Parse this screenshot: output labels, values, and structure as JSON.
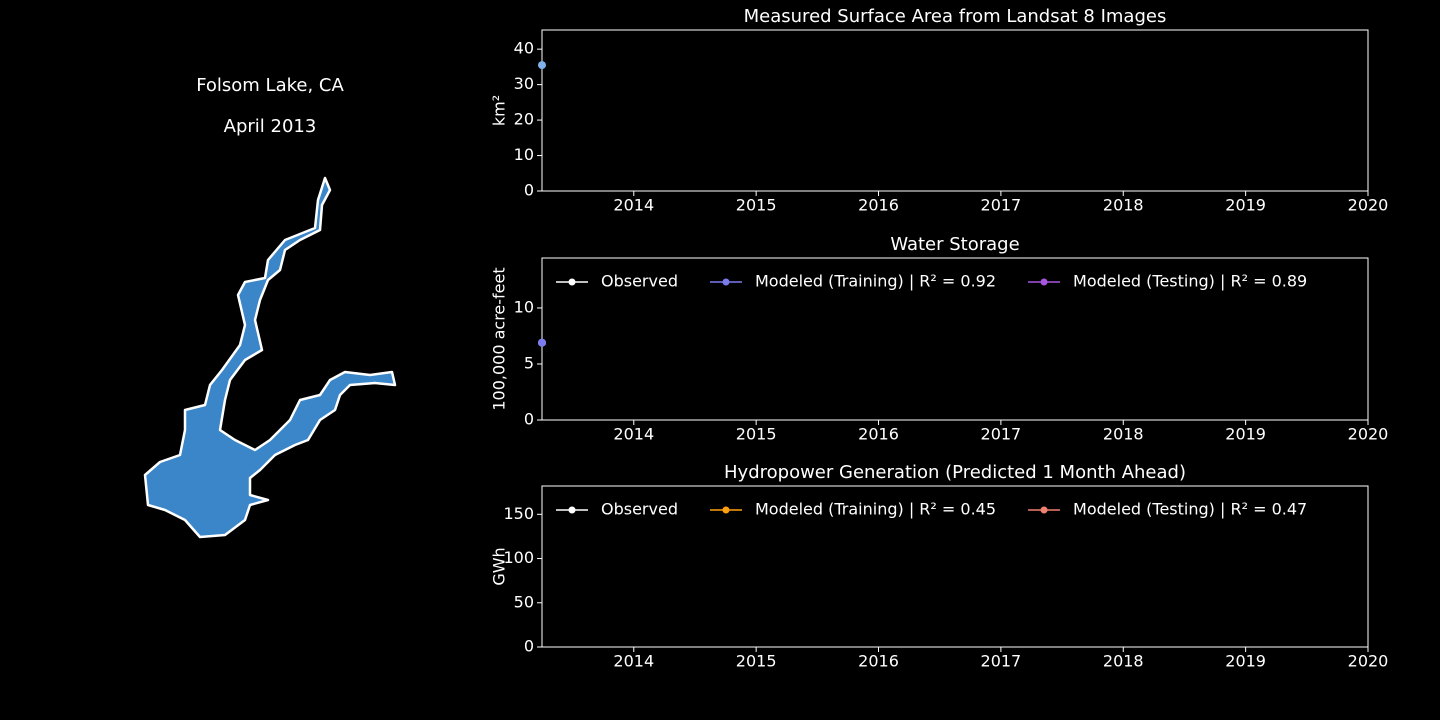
{
  "map": {
    "title": "Folsom Lake, CA",
    "subtitle": "April 2013"
  },
  "chart_data": [
    {
      "type": "line",
      "title": "Measured Surface Area from Landsat 8 Images",
      "y_label": "km²",
      "xlim": [
        2013.25,
        2020
      ],
      "xticks": [
        2014,
        2015,
        2016,
        2017,
        2018,
        2019,
        2020
      ],
      "ylim": [
        0,
        45.4
      ],
      "yticks": [
        0,
        10,
        20,
        30,
        40
      ],
      "series": [
        {
          "color": "#7fb2e8",
          "x": [
            2013.25
          ],
          "values": [
            35.5
          ]
        }
      ]
    },
    {
      "type": "line",
      "title": "Water Storage",
      "y_label": "100,000 acre-feet",
      "legend": "upper left",
      "xlim": [
        2013.25,
        2020
      ],
      "xticks": [
        2014,
        2015,
        2016,
        2017,
        2018,
        2019,
        2020
      ],
      "ylim": [
        0,
        14.46
      ],
      "yticks": [
        0,
        5,
        10
      ],
      "series": [
        {
          "name": "Observed",
          "color": "#ffffff",
          "x": [
            2013.25
          ],
          "values": [
            6.9
          ]
        },
        {
          "name": "Modeled (Training) | R² = 0.92",
          "color": "#7b7bf0",
          "x": [
            2013.25
          ],
          "values": [
            6.9
          ]
        },
        {
          "name": "Modeled (Testing) | R² = 0.89",
          "color": "#a855e0",
          "x": [],
          "values": []
        }
      ]
    },
    {
      "type": "line",
      "title": "Hydropower Generation (Predicted 1 Month Ahead)",
      "y_label": "GWh",
      "legend": "upper left",
      "xlim": [
        2013.25,
        2020
      ],
      "xticks": [
        2014,
        2015,
        2016,
        2017,
        2018,
        2019,
        2020
      ],
      "ylim": [
        0,
        182
      ],
      "yticks": [
        0,
        50,
        100,
        150
      ],
      "series": [
        {
          "name": "Observed",
          "color": "#ffffff",
          "x": [],
          "values": []
        },
        {
          "name": "Modeled (Training) | R² = 0.45",
          "color": "#ffa010",
          "x": [],
          "values": []
        },
        {
          "name": "Modeled (Testing) | R² = 0.47",
          "color": "#f08070",
          "x": [],
          "values": []
        }
      ]
    }
  ]
}
